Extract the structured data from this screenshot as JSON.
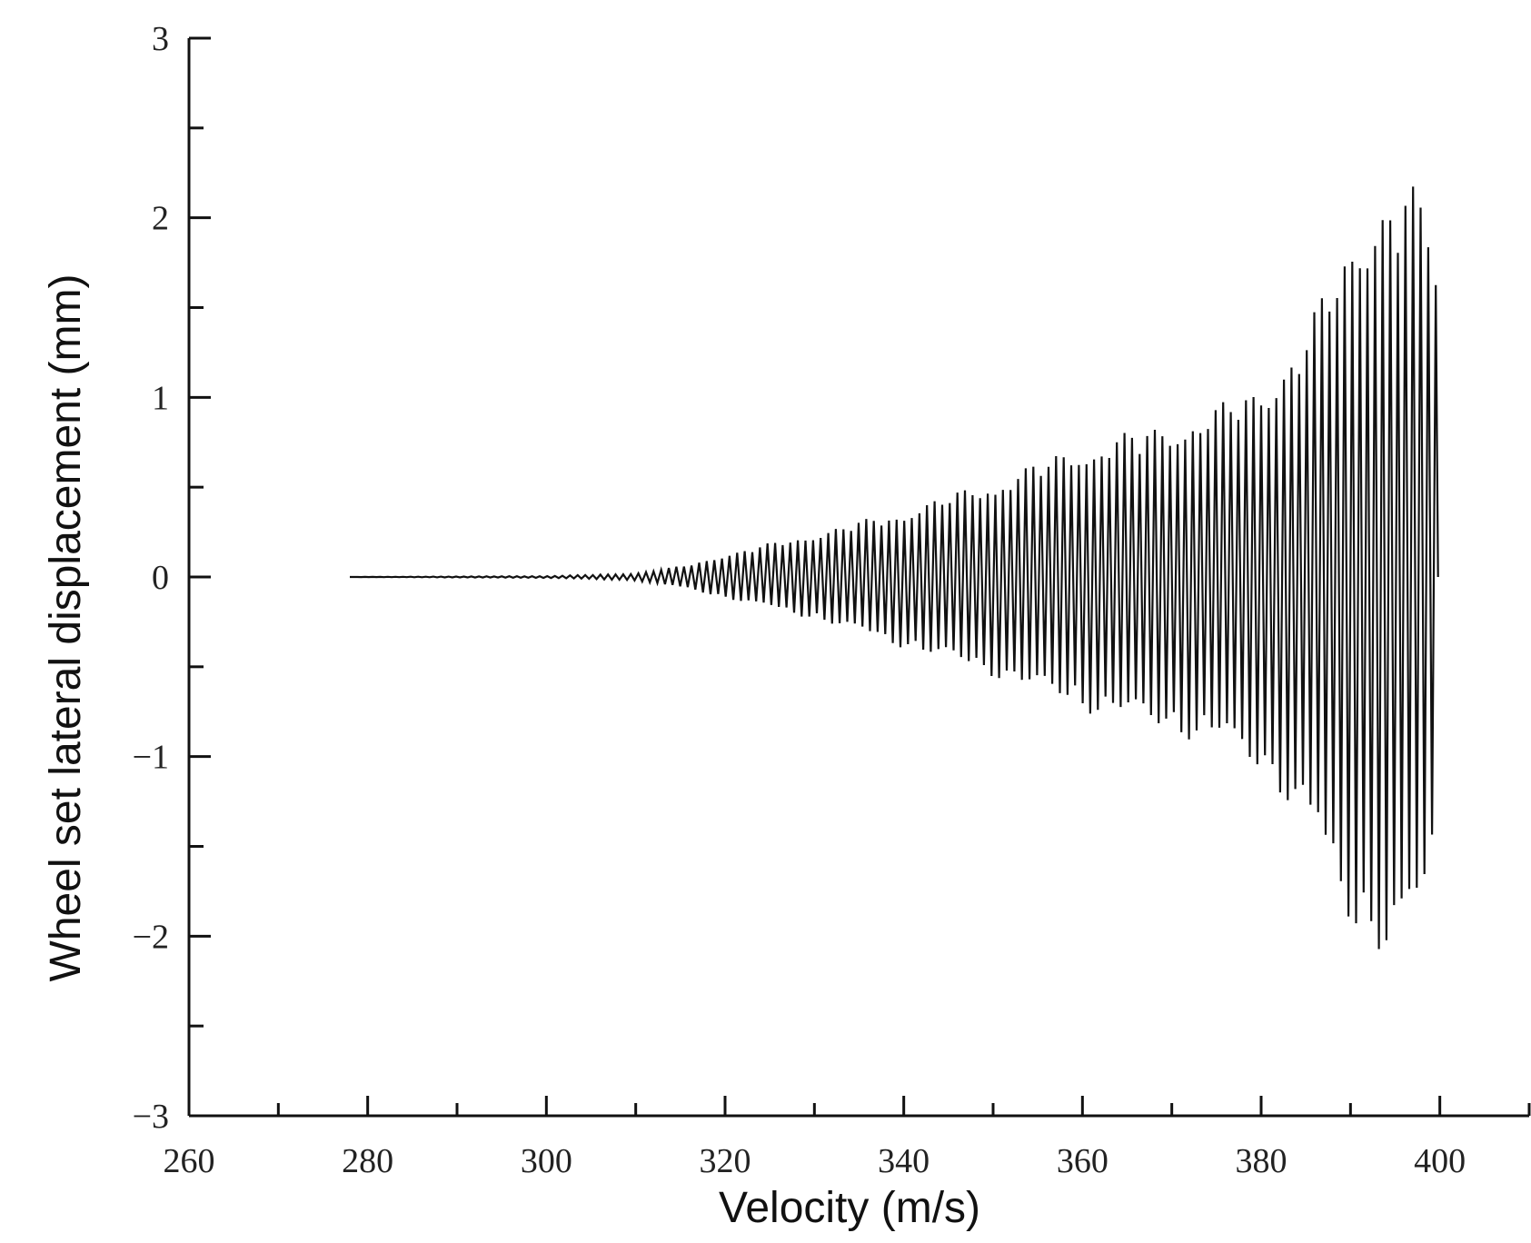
{
  "chart_data": {
    "type": "line",
    "title": "",
    "xlabel": "Velocity (m/s)",
    "ylabel": "Wheel set lateral displacement (mm)",
    "xlim": [
      260,
      410
    ],
    "ylim": [
      -3,
      3
    ],
    "x_ticks": [
      "260",
      "280",
      "300",
      "320",
      "340",
      "360",
      "380",
      "400"
    ],
    "x_tick_values": [
      260,
      280,
      300,
      320,
      340,
      360,
      380,
      400
    ],
    "x_minor_step": 10,
    "y_ticks": [
      "3",
      "2",
      "1",
      "0",
      "−1",
      "−2",
      "−3"
    ],
    "y_tick_values": [
      3,
      2,
      1,
      0,
      -1,
      -2,
      -3
    ],
    "y_minor_step": 0.5,
    "grid": false,
    "series": [
      {
        "color": "#111111",
        "x_start": 278,
        "x_end": 399.8,
        "oscillation_period": 0.85,
        "envelope_x": [
          278,
          300,
          310,
          316,
          320,
          330,
          340,
          350,
          360,
          370,
          375,
          380,
          385,
          388,
          391,
          394,
          396,
          398,
          399.5,
          399.8
        ],
        "envelope_upper": [
          0.0,
          0.005,
          0.02,
          0.07,
          0.13,
          0.25,
          0.38,
          0.55,
          0.75,
          0.88,
          0.96,
          1.1,
          1.38,
          1.72,
          2.05,
          2.18,
          2.2,
          2.15,
          2.2,
          0.0
        ],
        "envelope_lower": [
          0.0,
          -0.005,
          -0.02,
          -0.07,
          -0.12,
          -0.24,
          -0.4,
          -0.56,
          -0.75,
          -0.88,
          -0.96,
          -1.1,
          -1.4,
          -1.8,
          -2.05,
          -2.15,
          -2.12,
          -2.0,
          -1.6,
          0.0
        ]
      }
    ]
  }
}
